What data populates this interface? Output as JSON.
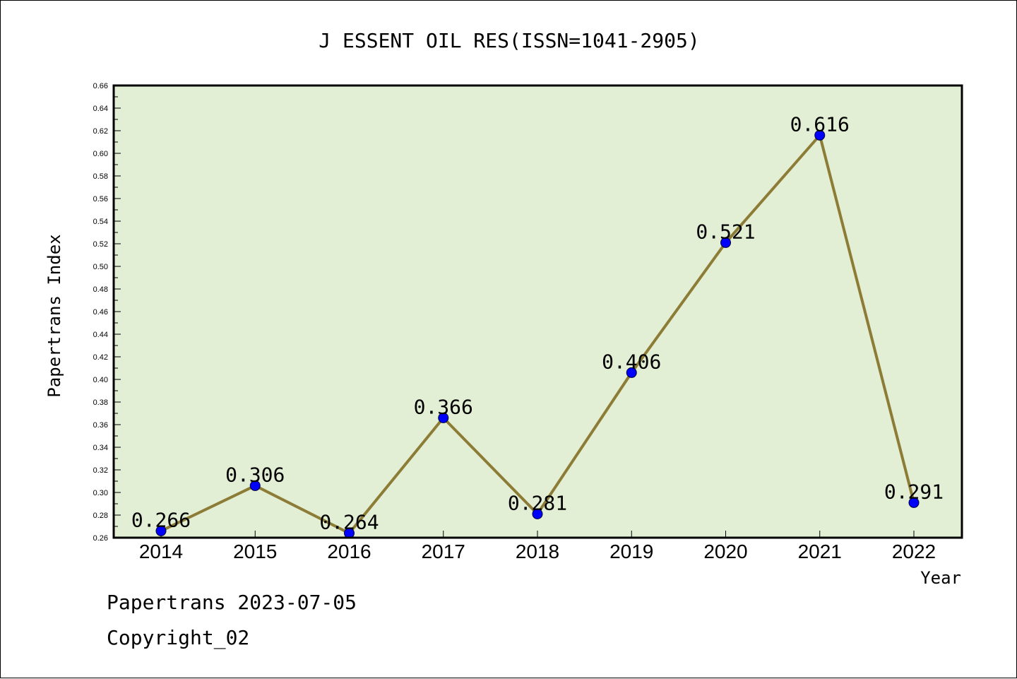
{
  "chart_data": {
    "type": "line",
    "title": "J ESSENT OIL RES(ISSN=1041-2905)",
    "xlabel": "Year",
    "ylabel": "Papertrans Index",
    "categories": [
      "2014",
      "2015",
      "2016",
      "2017",
      "2018",
      "2019",
      "2020",
      "2021",
      "2022"
    ],
    "series": [
      {
        "values": [
          0.266,
          0.306,
          0.264,
          0.366,
          0.281,
          0.406,
          0.521,
          0.616,
          0.291
        ],
        "data_labels": [
          "0.266",
          "0.306",
          "0.264",
          "0.366",
          "0.281",
          "0.406",
          "0.521",
          "0.616",
          "0.291"
        ]
      }
    ],
    "ylim": [
      0.26,
      0.66
    ],
    "yticks": [
      "0.26",
      "0.28",
      "0.30",
      "0.32",
      "0.34",
      "0.36",
      "0.38",
      "0.40",
      "0.42",
      "0.44",
      "0.46",
      "0.48",
      "0.50",
      "0.52",
      "0.54",
      "0.56",
      "0.58",
      "0.60",
      "0.62",
      "0.64",
      "0.66"
    ],
    "grid": false,
    "colors": {
      "plot_background": "#e2efd5",
      "line": "#8c7c35",
      "marker": "#0000ff"
    }
  },
  "footer": {
    "line1": "Papertrans 2023-07-05",
    "line2": "Copyright_02"
  }
}
